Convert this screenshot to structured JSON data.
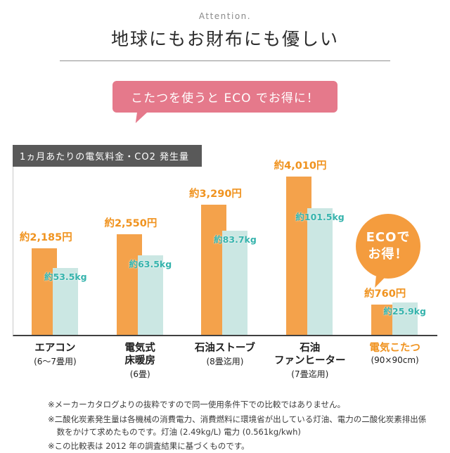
{
  "header": {
    "attention": "Attention.",
    "title": "地球にもお財布にも優しい"
  },
  "bubble": {
    "text": "こたつを使うと ECO でお得に！"
  },
  "chart_data": {
    "type": "bar",
    "title": "1ヵ月あたりの電気料金・CO2 発生量",
    "grid": false,
    "legend": "none",
    "categories": [
      "エアコン",
      "電気式床暖房",
      "石油ストーブ",
      "石油ファンヒーター",
      "電気こたつ"
    ],
    "category_name_lines": [
      [
        "エアコン"
      ],
      [
        "電気式",
        "床暖房"
      ],
      [
        "石油ストーブ"
      ],
      [
        "石油",
        "ファンヒーター"
      ],
      [
        "電気こたつ"
      ]
    ],
    "category_sublabels": [
      "(6〜7畳用)",
      "(6畳)",
      "(8畳迄用)",
      "(7畳迄用)",
      "(90×90cm)"
    ],
    "series": [
      {
        "name": "電気料金",
        "unit": "円",
        "values": [
          2185,
          2550,
          3290,
          4010,
          760
        ],
        "labels": [
          "約2,185円",
          "約2,550円",
          "約3,290円",
          "約4,010円",
          "約760円"
        ],
        "color": "#f4a24b"
      },
      {
        "name": "CO2発生量",
        "unit": "kg",
        "values": [
          53.5,
          63.5,
          83.7,
          101.5,
          25.9
        ],
        "labels": [
          "約53.5kg",
          "約63.5kg",
          "約83.7kg",
          "約101.5kg",
          "約25.9kg"
        ],
        "color": "#cbe7e3"
      }
    ],
    "highlight_index": 4,
    "ylim_price": [
      0,
      4010
    ],
    "ylim_co2": [
      0,
      101.5
    ]
  },
  "eco_badge": {
    "line1": "ECOで",
    "line2": "お得！"
  },
  "footnotes": [
    "※メーカーカタログよりの抜粋ですので同一使用条件下での比較ではありません。",
    "※二酸化炭素発生量は各機械の消費電力、消費燃料に環境省が出している灯油、電力の二酸化炭素排出係数をかけて求めたものです。灯油 (2.49kg/L) 電力 (0.561kg/kwh)",
    "※この比較表は 2012 年の調査結果に基づくものです。"
  ],
  "colors": {
    "bar_orange": "#f4a24b",
    "bar_teal": "#cbe7e3",
    "price_text": "#f0931f",
    "co2_text": "#35b3ac",
    "pink": "#e5798b",
    "badge_orange": "#f49c3e",
    "title_bar": "#595959"
  }
}
